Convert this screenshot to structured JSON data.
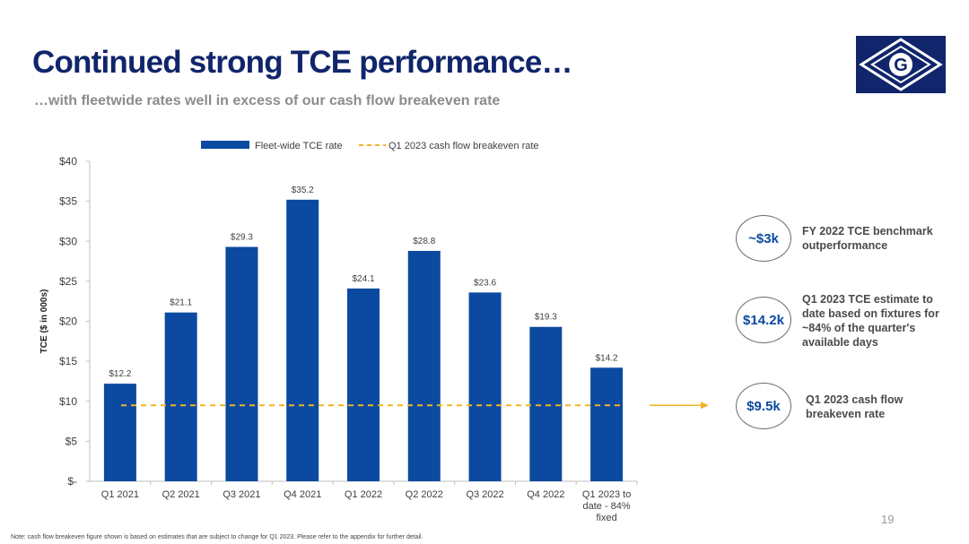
{
  "header": {
    "title": "Continued strong TCE performance…",
    "subtitle": "…with fleetwide rates well in excess of our cash flow breakeven rate"
  },
  "logo": {
    "icon": "g-diamond-logo-icon",
    "letter": "G",
    "color": "#10256b"
  },
  "chart_data": {
    "type": "bar",
    "categories": [
      "Q1 2021",
      "Q2 2021",
      "Q3 2021",
      "Q4 2021",
      "Q1 2022",
      "Q2 2022",
      "Q3 2022",
      "Q4 2022",
      "Q1 2023 to date - 84% fixed"
    ],
    "values": [
      12.2,
      21.1,
      29.3,
      35.2,
      24.1,
      28.8,
      23.6,
      19.3,
      14.2
    ],
    "data_labels": [
      "$12.2",
      "$21.1",
      "$29.3",
      "$35.2",
      "$24.1",
      "$28.8",
      "$23.6",
      "$19.3",
      "$14.2"
    ],
    "series_name": "Fleet-wide TCE rate",
    "breakeven": {
      "name": "Q1 2023 cash flow breakeven rate",
      "value": 9.5
    },
    "ylabel": "TCE ($ in 000s)",
    "ylim": [
      0,
      40
    ],
    "yticks": [
      0,
      5,
      10,
      15,
      20,
      25,
      30,
      35,
      40
    ],
    "ytick_labels": [
      "$-",
      "$5",
      "$10",
      "$15",
      "$20",
      "$25",
      "$30",
      "$35",
      "$40"
    ],
    "legend_position": "top",
    "grid": false,
    "bar_color": "#0b4aa0",
    "breakeven_color": "#f2b320"
  },
  "callouts": [
    {
      "value": "~$3k",
      "text": "FY 2022 TCE benchmark outperformance"
    },
    {
      "value": "$14.2k",
      "text": "Q1 2023 TCE estimate to date based on fixtures for ~84% of the quarter's available days"
    },
    {
      "value": "$9.5k",
      "text": "Q1 2023 cash flow breakeven rate"
    }
  ],
  "footer": {
    "page_number": "19",
    "note": "Note: cash flow breakeven figure shown is based on estimates that are subject to change for Q1 2023. Please refer to the appendix for further detail."
  }
}
